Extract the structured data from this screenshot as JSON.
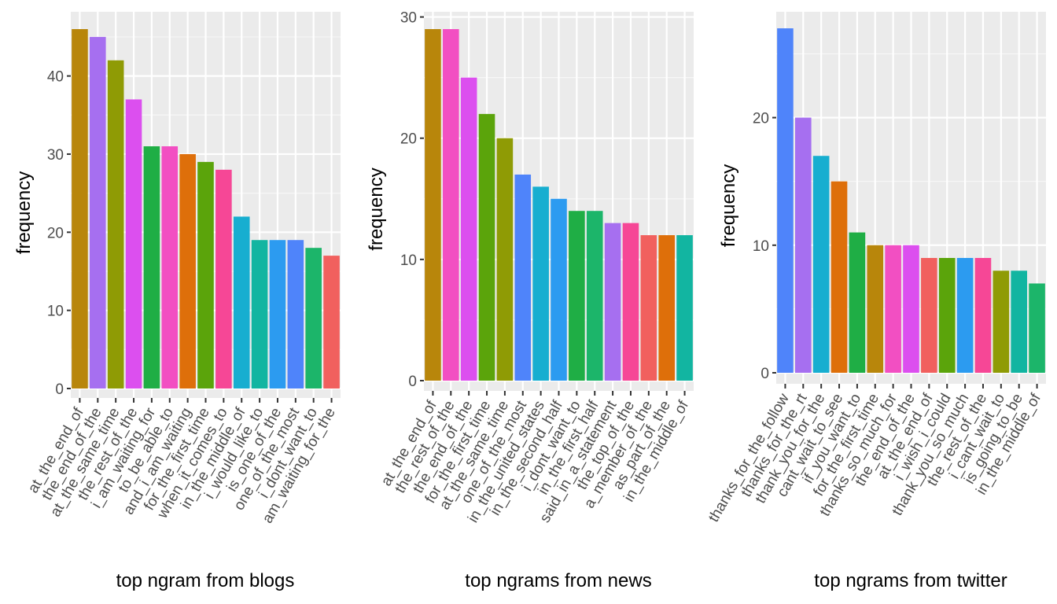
{
  "chart_data": [
    {
      "type": "bar",
      "xlabel": "top ngram from blogs",
      "ylabel": "frequency",
      "ylim": [
        0,
        46
      ],
      "yticks": [
        0,
        10,
        20,
        30,
        40
      ],
      "grid": true,
      "categories": [
        "at_the_end_of",
        "the_end_of_the",
        "at_the_same_time",
        "the_rest_of_the",
        "i_am_waiting_for",
        "to_be_able_to",
        "and_i_am_waiting",
        "for_the_first_time",
        "when_it_comes_to",
        "in_the_middle_of",
        "i_would_like_to",
        "is_one_of_the",
        "one_of_the_most",
        "i_dont_want_to",
        "am_waiting_for_the"
      ],
      "values": [
        46,
        45,
        42,
        37,
        31,
        31,
        30,
        29,
        28,
        22,
        19,
        19,
        19,
        18,
        17
      ],
      "colors": [
        "#B8860B",
        "#A66FF0",
        "#8F9B05",
        "#DC4FEF",
        "#1FAE45",
        "#F24FC2",
        "#DE6F0A",
        "#5BA40B",
        "#F64796",
        "#17AED0",
        "#12B5A1",
        "#2C9BF0",
        "#4F84FA",
        "#1CB56A",
        "#F1605E"
      ]
    },
    {
      "type": "bar",
      "xlabel": "top ngrams from news",
      "ylabel": "frequency",
      "ylim": [
        0,
        29
      ],
      "yticks": [
        0,
        10,
        20,
        30
      ],
      "grid": true,
      "categories": [
        "at_the_end_of",
        "the_rest_of_the",
        "the_end_of_the",
        "for_the_first_time",
        "at_the_same_time",
        "one_of_the_most",
        "in_the_united_states",
        "in_the_second_half",
        "i_dont_want_to",
        "in_the_first_half",
        "said_in_a_statement",
        "the_top_of_the",
        "a_member_of_the",
        "as_part_of_the",
        "in_the_middle_of"
      ],
      "values": [
        29,
        29,
        25,
        22,
        20,
        17,
        16,
        15,
        14,
        14,
        13,
        13,
        12,
        12,
        12
      ],
      "colors": [
        "#B8860B",
        "#F24FC2",
        "#DC4FEF",
        "#5BA40B",
        "#8F9B05",
        "#4F84FA",
        "#17AED0",
        "#2C9BF0",
        "#1FAE45",
        "#1CB56A",
        "#A66FF0",
        "#F64796",
        "#F1605E",
        "#DE6F0A",
        "#12B5A1"
      ]
    },
    {
      "type": "bar",
      "xlabel": "top ngrams from twitter",
      "ylabel": "frequency",
      "ylim": [
        0,
        27
      ],
      "yticks": [
        0,
        10,
        20
      ],
      "grid": true,
      "categories": [
        "thanks_for_the_follow",
        "thanks_for_the_rt",
        "thank_you_for_the",
        "cant_wait_to_see",
        "if_you_want_to",
        "for_the_first_time",
        "thanks_so_much_for",
        "the_end_of_the",
        "at_the_end_of",
        "i_wish_i_could",
        "thank_you_so_much",
        "the_rest_of_the",
        "i_cant_wait_to",
        "is_going_to_be",
        "in_the_middle_of"
      ],
      "values": [
        27,
        20,
        17,
        15,
        11,
        10,
        10,
        10,
        9,
        9,
        9,
        9,
        8,
        8,
        7
      ],
      "colors": [
        "#4F84FA",
        "#A66FF0",
        "#17AED0",
        "#DE6F0A",
        "#1FAE45",
        "#B8860B",
        "#F24FC2",
        "#DC4FEF",
        "#F1605E",
        "#5BA40B",
        "#2C9BF0",
        "#F64796",
        "#8F9B05",
        "#12B5A1",
        "#1CB56A"
      ]
    }
  ]
}
